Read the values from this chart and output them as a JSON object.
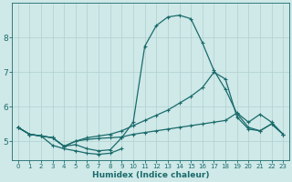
{
  "xlabel": "Humidex (Indice chaleur)",
  "background_color": "#cfe8e8",
  "grid_color": "#b0d0d0",
  "line_color": "#1a6b6b",
  "xlim": [
    -0.5,
    23.5
  ],
  "ylim": [
    4.45,
    9.0
  ],
  "xticks": [
    0,
    1,
    2,
    3,
    4,
    5,
    6,
    7,
    8,
    9,
    10,
    11,
    12,
    13,
    14,
    15,
    16,
    17,
    18,
    19,
    20,
    21,
    22,
    23
  ],
  "yticks": [
    5,
    6,
    7,
    8
  ],
  "lines": [
    {
      "x": [
        0,
        1,
        2,
        3,
        4,
        5,
        6,
        7,
        8,
        9,
        10,
        11,
        12,
        13,
        14,
        15,
        16,
        17,
        18,
        19,
        20,
        21,
        22,
        23
      ],
      "y": [
        5.4,
        5.2,
        5.15,
        5.1,
        4.85,
        4.9,
        4.78,
        4.72,
        4.75,
        5.1,
        5.55,
        7.75,
        8.35,
        8.6,
        8.65,
        8.55,
        7.85,
        7.05,
        6.5,
        5.8,
        5.4,
        5.3,
        5.5,
        5.2
      ],
      "marker": "+"
    },
    {
      "x": [
        0,
        1,
        2,
        3,
        4,
        5,
        6,
        7,
        8,
        9,
        10,
        11,
        12,
        13,
        14,
        15,
        16,
        17,
        18,
        19,
        20,
        21,
        22,
        23
      ],
      "y": [
        5.4,
        5.2,
        5.15,
        5.1,
        4.85,
        5.0,
        5.1,
        5.15,
        5.2,
        5.3,
        5.45,
        5.6,
        5.75,
        5.9,
        6.1,
        6.3,
        6.55,
        7.0,
        6.8,
        5.7,
        5.35,
        5.3,
        5.5,
        5.2
      ],
      "marker": "+"
    },
    {
      "x": [
        0,
        1,
        2,
        3,
        4,
        5,
        6,
        7,
        8,
        9,
        10,
        11,
        12,
        13,
        14,
        15,
        16,
        17,
        18,
        19,
        20,
        21,
        22,
        23
      ],
      "y": [
        5.4,
        5.2,
        5.15,
        5.1,
        4.85,
        5.0,
        5.05,
        5.08,
        5.1,
        5.12,
        5.2,
        5.25,
        5.3,
        5.35,
        5.4,
        5.45,
        5.5,
        5.55,
        5.6,
        5.82,
        5.55,
        5.78,
        5.55,
        5.2
      ],
      "marker": "+"
    },
    {
      "x": [
        0,
        1,
        2,
        3,
        4,
        5,
        6,
        7,
        8,
        9
      ],
      "y": [
        5.4,
        5.2,
        5.15,
        4.88,
        4.78,
        4.72,
        4.65,
        4.62,
        4.65,
        4.78
      ],
      "marker": "+"
    }
  ]
}
